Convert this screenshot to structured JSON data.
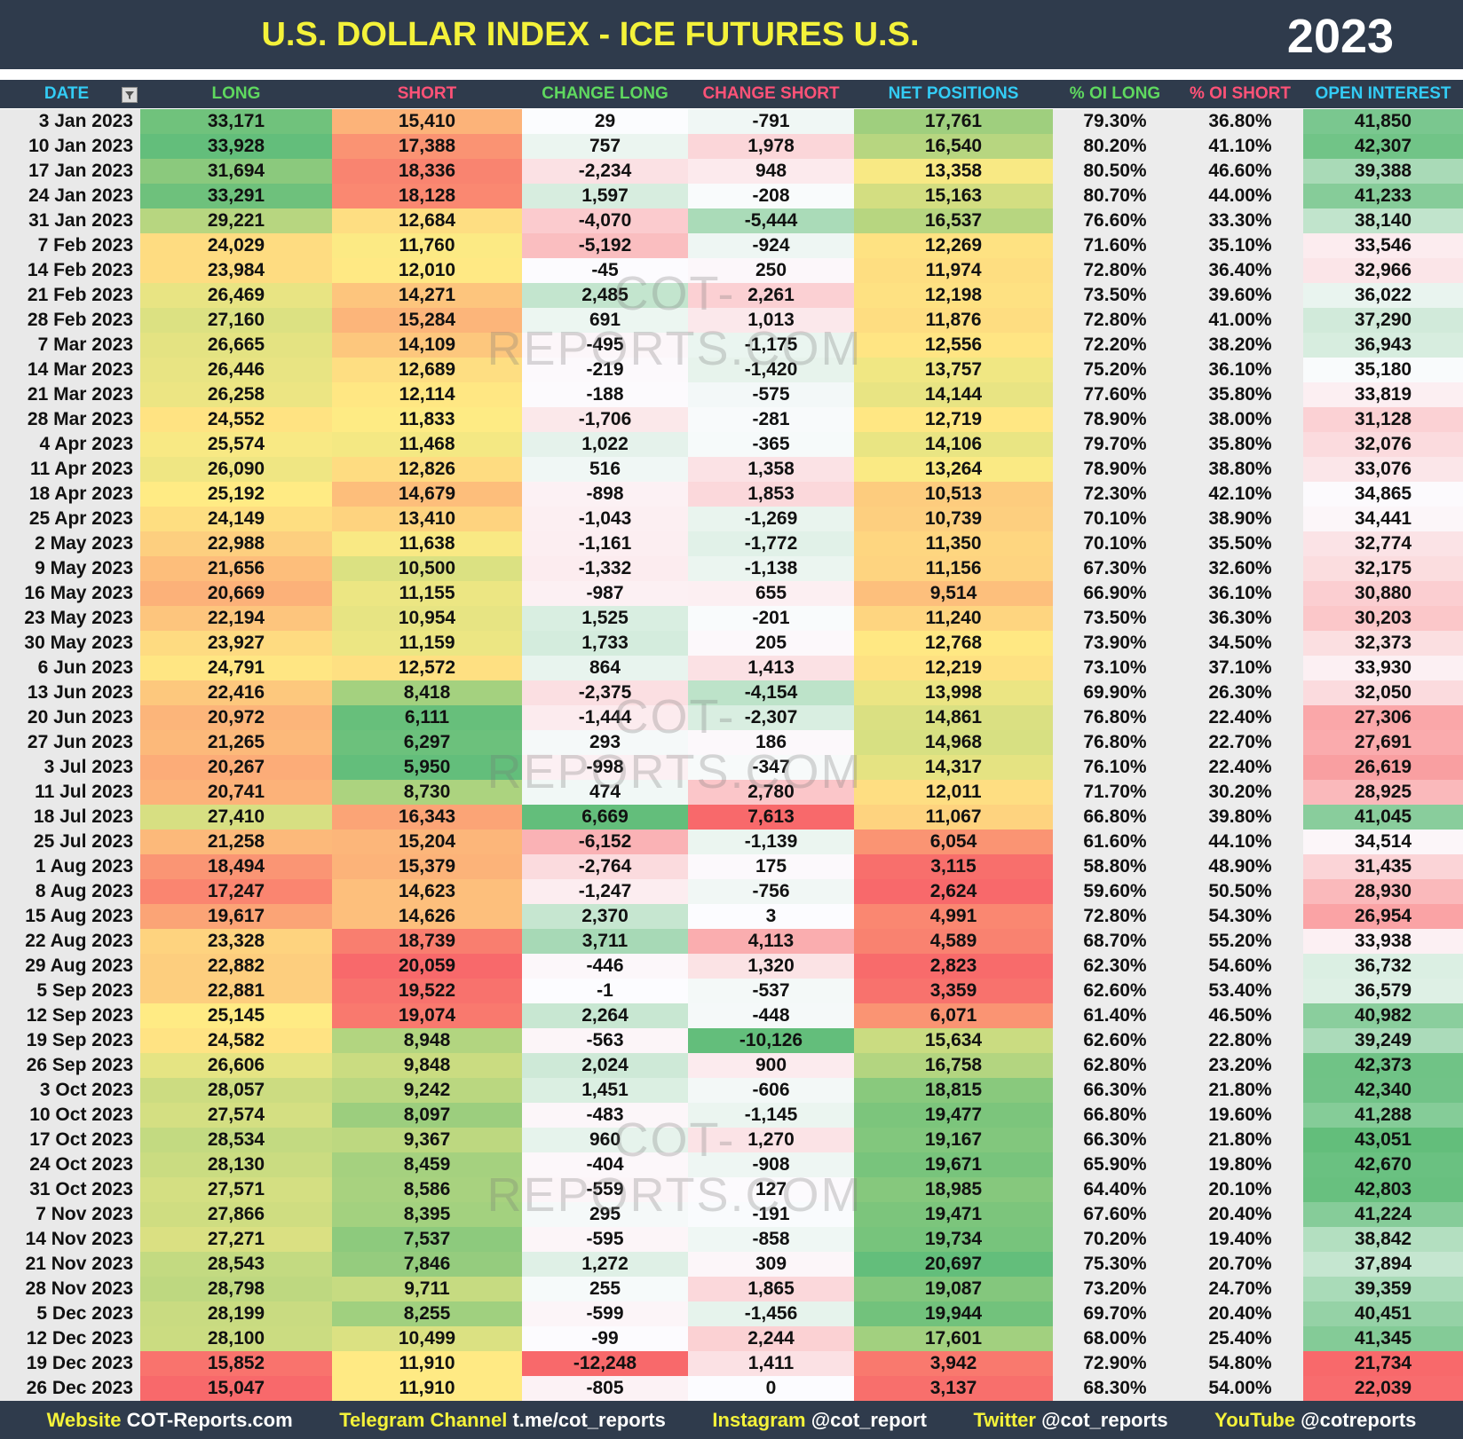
{
  "header": {
    "title": "U.S. DOLLAR INDEX - ICE FUTURES U.S.",
    "year": "2023"
  },
  "watermark": "COT-REPORTS.COM",
  "table": {
    "columns": [
      "DATE",
      "LONG",
      "SHORT",
      "CHANGE LONG",
      "CHANGE SHORT",
      "NET POSITIONS",
      "% OI LONG",
      "% OI SHORT",
      "OPEN INTEREST"
    ],
    "rows": [
      [
        "3 Jan 2023",
        "33,171",
        "15,410",
        "29",
        "-791",
        "17,761",
        "79.30%",
        "36.80%",
        "41,850"
      ],
      [
        "10 Jan 2023",
        "33,928",
        "17,388",
        "757",
        "1,978",
        "16,540",
        "80.20%",
        "41.10%",
        "42,307"
      ],
      [
        "17 Jan 2023",
        "31,694",
        "18,336",
        "-2,234",
        "948",
        "13,358",
        "80.50%",
        "46.60%",
        "39,388"
      ],
      [
        "24 Jan 2023",
        "33,291",
        "18,128",
        "1,597",
        "-208",
        "15,163",
        "80.70%",
        "44.00%",
        "41,233"
      ],
      [
        "31 Jan 2023",
        "29,221",
        "12,684",
        "-4,070",
        "-5,444",
        "16,537",
        "76.60%",
        "33.30%",
        "38,140"
      ],
      [
        "7 Feb 2023",
        "24,029",
        "11,760",
        "-5,192",
        "-924",
        "12,269",
        "71.60%",
        "35.10%",
        "33,546"
      ],
      [
        "14 Feb 2023",
        "23,984",
        "12,010",
        "-45",
        "250",
        "11,974",
        "72.80%",
        "36.40%",
        "32,966"
      ],
      [
        "21 Feb 2023",
        "26,469",
        "14,271",
        "2,485",
        "2,261",
        "12,198",
        "73.50%",
        "39.60%",
        "36,022"
      ],
      [
        "28 Feb 2023",
        "27,160",
        "15,284",
        "691",
        "1,013",
        "11,876",
        "72.80%",
        "41.00%",
        "37,290"
      ],
      [
        "7 Mar 2023",
        "26,665",
        "14,109",
        "-495",
        "-1,175",
        "12,556",
        "72.20%",
        "38.20%",
        "36,943"
      ],
      [
        "14 Mar 2023",
        "26,446",
        "12,689",
        "-219",
        "-1,420",
        "13,757",
        "75.20%",
        "36.10%",
        "35,180"
      ],
      [
        "21 Mar 2023",
        "26,258",
        "12,114",
        "-188",
        "-575",
        "14,144",
        "77.60%",
        "35.80%",
        "33,819"
      ],
      [
        "28 Mar 2023",
        "24,552",
        "11,833",
        "-1,706",
        "-281",
        "12,719",
        "78.90%",
        "38.00%",
        "31,128"
      ],
      [
        "4 Apr 2023",
        "25,574",
        "11,468",
        "1,022",
        "-365",
        "14,106",
        "79.70%",
        "35.80%",
        "32,076"
      ],
      [
        "11 Apr 2023",
        "26,090",
        "12,826",
        "516",
        "1,358",
        "13,264",
        "78.90%",
        "38.80%",
        "33,076"
      ],
      [
        "18 Apr 2023",
        "25,192",
        "14,679",
        "-898",
        "1,853",
        "10,513",
        "72.30%",
        "42.10%",
        "34,865"
      ],
      [
        "25 Apr 2023",
        "24,149",
        "13,410",
        "-1,043",
        "-1,269",
        "10,739",
        "70.10%",
        "38.90%",
        "34,441"
      ],
      [
        "2 May 2023",
        "22,988",
        "11,638",
        "-1,161",
        "-1,772",
        "11,350",
        "70.10%",
        "35.50%",
        "32,774"
      ],
      [
        "9 May 2023",
        "21,656",
        "10,500",
        "-1,332",
        "-1,138",
        "11,156",
        "67.30%",
        "32.60%",
        "32,175"
      ],
      [
        "16 May 2023",
        "20,669",
        "11,155",
        "-987",
        "655",
        "9,514",
        "66.90%",
        "36.10%",
        "30,880"
      ],
      [
        "23 May 2023",
        "22,194",
        "10,954",
        "1,525",
        "-201",
        "11,240",
        "73.50%",
        "36.30%",
        "30,203"
      ],
      [
        "30 May 2023",
        "23,927",
        "11,159",
        "1,733",
        "205",
        "12,768",
        "73.90%",
        "34.50%",
        "32,373"
      ],
      [
        "6 Jun 2023",
        "24,791",
        "12,572",
        "864",
        "1,413",
        "12,219",
        "73.10%",
        "37.10%",
        "33,930"
      ],
      [
        "13 Jun 2023",
        "22,416",
        "8,418",
        "-2,375",
        "-4,154",
        "13,998",
        "69.90%",
        "26.30%",
        "32,050"
      ],
      [
        "20 Jun 2023",
        "20,972",
        "6,111",
        "-1,444",
        "-2,307",
        "14,861",
        "76.80%",
        "22.40%",
        "27,306"
      ],
      [
        "27 Jun 2023",
        "21,265",
        "6,297",
        "293",
        "186",
        "14,968",
        "76.80%",
        "22.70%",
        "27,691"
      ],
      [
        "3 Jul 2023",
        "20,267",
        "5,950",
        "-998",
        "-347",
        "14,317",
        "76.10%",
        "22.40%",
        "26,619"
      ],
      [
        "11 Jul 2023",
        "20,741",
        "8,730",
        "474",
        "2,780",
        "12,011",
        "71.70%",
        "30.20%",
        "28,925"
      ],
      [
        "18 Jul 2023",
        "27,410",
        "16,343",
        "6,669",
        "7,613",
        "11,067",
        "66.80%",
        "39.80%",
        "41,045"
      ],
      [
        "25 Jul 2023",
        "21,258",
        "15,204",
        "-6,152",
        "-1,139",
        "6,054",
        "61.60%",
        "44.10%",
        "34,514"
      ],
      [
        "1 Aug 2023",
        "18,494",
        "15,379",
        "-2,764",
        "175",
        "3,115",
        "58.80%",
        "48.90%",
        "31,435"
      ],
      [
        "8 Aug 2023",
        "17,247",
        "14,623",
        "-1,247",
        "-756",
        "2,624",
        "59.60%",
        "50.50%",
        "28,930"
      ],
      [
        "15 Aug 2023",
        "19,617",
        "14,626",
        "2,370",
        "3",
        "4,991",
        "72.80%",
        "54.30%",
        "26,954"
      ],
      [
        "22 Aug 2023",
        "23,328",
        "18,739",
        "3,711",
        "4,113",
        "4,589",
        "68.70%",
        "55.20%",
        "33,938"
      ],
      [
        "29 Aug 2023",
        "22,882",
        "20,059",
        "-446",
        "1,320",
        "2,823",
        "62.30%",
        "54.60%",
        "36,732"
      ],
      [
        "5 Sep 2023",
        "22,881",
        "19,522",
        "-1",
        "-537",
        "3,359",
        "62.60%",
        "53.40%",
        "36,579"
      ],
      [
        "12 Sep 2023",
        "25,145",
        "19,074",
        "2,264",
        "-448",
        "6,071",
        "61.40%",
        "46.50%",
        "40,982"
      ],
      [
        "19 Sep 2023",
        "24,582",
        "8,948",
        "-563",
        "-10,126",
        "15,634",
        "62.60%",
        "22.80%",
        "39,249"
      ],
      [
        "26 Sep 2023",
        "26,606",
        "9,848",
        "2,024",
        "900",
        "16,758",
        "62.80%",
        "23.20%",
        "42,373"
      ],
      [
        "3 Oct 2023",
        "28,057",
        "9,242",
        "1,451",
        "-606",
        "18,815",
        "66.30%",
        "21.80%",
        "42,340"
      ],
      [
        "10 Oct 2023",
        "27,574",
        "8,097",
        "-483",
        "-1,145",
        "19,477",
        "66.80%",
        "19.60%",
        "41,288"
      ],
      [
        "17 Oct 2023",
        "28,534",
        "9,367",
        "960",
        "1,270",
        "19,167",
        "66.30%",
        "21.80%",
        "43,051"
      ],
      [
        "24 Oct 2023",
        "28,130",
        "8,459",
        "-404",
        "-908",
        "19,671",
        "65.90%",
        "19.80%",
        "42,670"
      ],
      [
        "31 Oct 2023",
        "27,571",
        "8,586",
        "-559",
        "127",
        "18,985",
        "64.40%",
        "20.10%",
        "42,803"
      ],
      [
        "7 Nov 2023",
        "27,866",
        "8,395",
        "295",
        "-191",
        "19,471",
        "67.60%",
        "20.40%",
        "41,224"
      ],
      [
        "14 Nov 2023",
        "27,271",
        "7,537",
        "-595",
        "-858",
        "19,734",
        "70.20%",
        "19.40%",
        "38,842"
      ],
      [
        "21 Nov 2023",
        "28,543",
        "7,846",
        "1,272",
        "309",
        "20,697",
        "75.30%",
        "20.70%",
        "37,894"
      ],
      [
        "28 Nov 2023",
        "28,798",
        "9,711",
        "255",
        "1,865",
        "19,087",
        "73.20%",
        "24.70%",
        "39,359"
      ],
      [
        "5 Dec 2023",
        "28,199",
        "8,255",
        "-599",
        "-1,456",
        "19,944",
        "69.70%",
        "20.40%",
        "40,451"
      ],
      [
        "12 Dec 2023",
        "28,100",
        "10,499",
        "-99",
        "2,244",
        "17,601",
        "68.00%",
        "25.40%",
        "41,345"
      ],
      [
        "19 Dec 2023",
        "15,852",
        "11,910",
        "-12,248",
        "1,411",
        "3,942",
        "72.90%",
        "54.80%",
        "21,734"
      ],
      [
        "26 Dec 2023",
        "15,047",
        "11,910",
        "-805",
        "0",
        "3,137",
        "68.30%",
        "54.00%",
        "22,039"
      ]
    ]
  },
  "footer": [
    [
      "Website",
      "COT-Reports.com"
    ],
    [
      "Telegram Channel",
      "t.me/cot_reports"
    ],
    [
      "Instagram",
      "@cot_report"
    ],
    [
      "Twitter",
      "@cot_reports"
    ],
    [
      "YouTube",
      "@cotreports"
    ]
  ]
}
